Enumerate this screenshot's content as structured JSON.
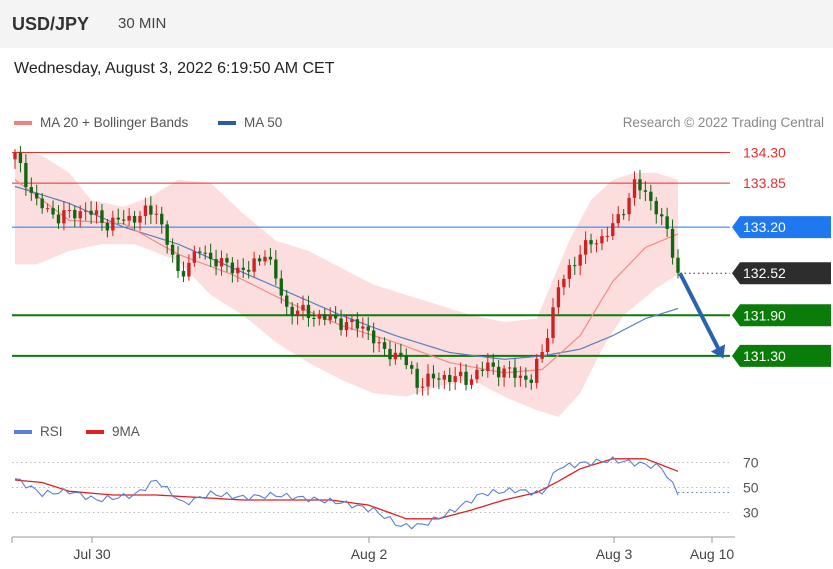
{
  "header": {
    "symbol": "USD/JPY",
    "timeframe": "30 MIN"
  },
  "datetime": "Wednesday, August 3, 2022 6:19:50 AM CET",
  "legend_top": [
    {
      "label": "MA 20 + Bollinger Bands",
      "color": "#f08080"
    },
    {
      "label": "MA 50",
      "color": "#2a5aa8"
    }
  ],
  "credit": "Research © 2022 Trading Central",
  "legend_rsi": [
    {
      "label": "RSI",
      "color": "#5b7fd6"
    },
    {
      "label": "9MA",
      "color": "#e02020"
    }
  ],
  "colors": {
    "up": "#cc2222",
    "down": "#116611",
    "band": "#fdd8d8",
    "ma20": "#f28a8a",
    "ma50": "#5b7fc0"
  },
  "chart_data": {
    "type": "candlestick",
    "ylim": [
      130.65,
      134.5
    ],
    "x_ticks": [
      "Jul 30",
      "Aug 2",
      "Aug 3",
      "Aug 10"
    ],
    "levels": [
      {
        "value": "134.30",
        "style": "resistance",
        "color": "#e32f2f"
      },
      {
        "value": "133.85",
        "style": "resistance",
        "color": "#e32f2f"
      },
      {
        "value": "133.20",
        "style": "pivot",
        "color": "#1f78f0"
      },
      {
        "value": "132.52",
        "style": "current",
        "color": "#2d2d2d"
      },
      {
        "value": "131.90",
        "style": "support",
        "color": "#0a7c0a"
      },
      {
        "value": "131.30",
        "style": "support",
        "color": "#0a7c0a"
      }
    ],
    "close_anchors": [
      [
        0,
        134.25
      ],
      [
        4,
        133.55
      ],
      [
        8,
        133.35
      ],
      [
        13,
        133.45
      ],
      [
        17,
        133.25
      ],
      [
        22,
        133.35
      ],
      [
        26,
        133.45
      ],
      [
        30,
        132.5
      ],
      [
        34,
        132.85
      ],
      [
        38,
        132.65
      ],
      [
        43,
        132.55
      ],
      [
        46,
        132.85
      ],
      [
        50,
        132.0
      ],
      [
        55,
        131.9
      ],
      [
        60,
        131.8
      ],
      [
        65,
        131.7
      ],
      [
        67,
        131.4
      ],
      [
        71,
        131.3
      ],
      [
        74,
        130.9
      ],
      [
        79,
        131.0
      ],
      [
        83,
        130.95
      ],
      [
        87,
        131.15
      ],
      [
        91,
        131.05
      ],
      [
        95,
        130.95
      ],
      [
        97,
        131.35
      ],
      [
        100,
        132.3
      ],
      [
        104,
        132.85
      ],
      [
        108,
        133.05
      ],
      [
        111,
        133.3
      ],
      [
        114,
        133.85
      ],
      [
        118,
        133.5
      ],
      [
        120,
        133.1
      ],
      [
        122,
        132.52
      ]
    ],
    "ma20_anchors": [
      [
        0,
        133.9
      ],
      [
        10,
        133.3
      ],
      [
        20,
        133.25
      ],
      [
        30,
        132.8
      ],
      [
        40,
        132.5
      ],
      [
        50,
        132.1
      ],
      [
        60,
        131.75
      ],
      [
        70,
        131.5
      ],
      [
        80,
        131.2
      ],
      [
        90,
        131.05
      ],
      [
        97,
        131.1
      ],
      [
        104,
        131.6
      ],
      [
        110,
        132.4
      ],
      [
        116,
        132.9
      ],
      [
        122,
        133.1
      ]
    ],
    "upper_band_anchors": [
      [
        0,
        134.35
      ],
      [
        5,
        134.25
      ],
      [
        10,
        134.0
      ],
      [
        14,
        133.6
      ],
      [
        20,
        133.5
      ],
      [
        25,
        133.65
      ],
      [
        30,
        133.9
      ],
      [
        36,
        133.85
      ],
      [
        42,
        133.4
      ],
      [
        48,
        133.0
      ],
      [
        54,
        132.85
      ],
      [
        60,
        132.6
      ],
      [
        66,
        132.35
      ],
      [
        72,
        132.2
      ],
      [
        78,
        132.05
      ],
      [
        84,
        131.9
      ],
      [
        90,
        131.8
      ],
      [
        96,
        131.85
      ],
      [
        102,
        133.0
      ],
      [
        106,
        133.6
      ],
      [
        110,
        133.9
      ],
      [
        114,
        134.0
      ],
      [
        118,
        134.0
      ],
      [
        122,
        133.9
      ]
    ],
    "lower_band_anchors": [
      [
        0,
        132.65
      ],
      [
        4,
        132.65
      ],
      [
        10,
        132.85
      ],
      [
        16,
        132.95
      ],
      [
        22,
        132.95
      ],
      [
        30,
        132.7
      ],
      [
        36,
        132.2
      ],
      [
        42,
        131.9
      ],
      [
        48,
        131.5
      ],
      [
        54,
        131.2
      ],
      [
        60,
        130.95
      ],
      [
        66,
        130.75
      ],
      [
        72,
        130.7
      ],
      [
        78,
        130.85
      ],
      [
        84,
        130.95
      ],
      [
        90,
        130.7
      ],
      [
        96,
        130.5
      ],
      [
        100,
        130.4
      ],
      [
        104,
        130.75
      ],
      [
        108,
        131.4
      ],
      [
        112,
        131.9
      ],
      [
        118,
        132.3
      ],
      [
        122,
        132.5
      ]
    ],
    "ma50_anchors": [
      [
        0,
        133.8
      ],
      [
        10,
        133.55
      ],
      [
        20,
        133.2
      ],
      [
        30,
        132.95
      ],
      [
        40,
        132.6
      ],
      [
        50,
        132.25
      ],
      [
        60,
        131.9
      ],
      [
        70,
        131.6
      ],
      [
        80,
        131.35
      ],
      [
        90,
        131.25
      ],
      [
        97,
        131.3
      ],
      [
        104,
        131.4
      ],
      [
        110,
        131.6
      ],
      [
        116,
        131.85
      ],
      [
        122,
        132.0
      ]
    ],
    "rsi": {
      "ylim": [
        20,
        80
      ],
      "ticks": [
        "70",
        "50",
        "30"
      ],
      "rsi_anchors": [
        [
          0,
          57
        ],
        [
          5,
          45
        ],
        [
          10,
          47
        ],
        [
          15,
          40
        ],
        [
          22,
          44
        ],
        [
          26,
          56
        ],
        [
          31,
          37
        ],
        [
          36,
          45
        ],
        [
          42,
          42
        ],
        [
          48,
          44
        ],
        [
          54,
          41
        ],
        [
          60,
          38
        ],
        [
          66,
          32
        ],
        [
          71,
          19
        ],
        [
          75,
          20
        ],
        [
          80,
          30
        ],
        [
          86,
          45
        ],
        [
          92,
          48
        ],
        [
          97,
          45
        ],
        [
          100,
          66
        ],
        [
          104,
          69
        ],
        [
          110,
          72
        ],
        [
          115,
          69
        ],
        [
          119,
          66
        ],
        [
          121,
          52
        ],
        [
          122,
          46
        ]
      ],
      "ma9_anchors": [
        [
          0,
          56
        ],
        [
          5,
          54
        ],
        [
          10,
          47
        ],
        [
          18,
          44
        ],
        [
          26,
          44
        ],
        [
          34,
          42
        ],
        [
          42,
          40
        ],
        [
          50,
          40
        ],
        [
          58,
          40
        ],
        [
          65,
          36
        ],
        [
          72,
          25
        ],
        [
          78,
          25
        ],
        [
          84,
          32
        ],
        [
          90,
          40
        ],
        [
          96,
          46
        ],
        [
          100,
          55
        ],
        [
          104,
          65
        ],
        [
          110,
          73
        ],
        [
          116,
          73
        ],
        [
          122,
          63
        ]
      ]
    }
  }
}
